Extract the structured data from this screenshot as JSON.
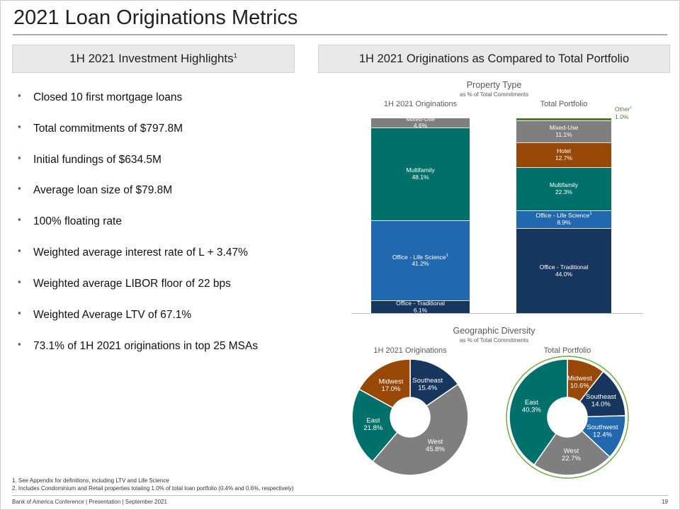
{
  "slide": {
    "title": "2021 Loan Originations Metrics",
    "page_number": "19",
    "footer": "Bank of America Conference | Presentation | September 2021",
    "footnotes": [
      "1. See Appendix for definitions, including LTV and Life Science",
      "2. Includes Condominium and Retail properties totaling 1.0% of total loan portfolio (0.4% and 0.6%, respectively)"
    ]
  },
  "left_panel": {
    "header": "1H 2021 Investment Highlights",
    "header_superscript": "1",
    "bullets": [
      "Closed 10 first mortgage loans",
      "Total commitments of $797.8M",
      "Initial fundings of $634.5M",
      "Average loan size of $79.8M",
      "100% floating rate",
      "Weighted average interest rate of L + 3.47%",
      "Weighted average LIBOR floor of 22 bps",
      "Weighted Average LTV of 67.1%",
      "73.1% of 1H 2021 originations in top 25 MSAs"
    ]
  },
  "right_panel": {
    "header": "1H 2021 Originations as Compared to Total Portfolio"
  },
  "colors": {
    "bullet": "#3e6f6b",
    "ring": "#6fac46",
    "other_label_text": "#538135",
    "palette": {
      "gray": "#7f7f7f",
      "teal": "#00716a",
      "blue": "#2268ae",
      "navy": "#17365d",
      "brown": "#974806",
      "green": "#4f7b28"
    }
  },
  "chart_data": [
    {
      "type": "bar",
      "stacked": true,
      "title": "Property Type",
      "subtitle": "as % of Total Commitments",
      "unit": "% of total commitments",
      "ylim": [
        0,
        100
      ],
      "columns": [
        {
          "label": "1H 2021 Originations",
          "segments": [
            {
              "name": "Mixed-Use",
              "value": 4.6,
              "color": "gray"
            },
            {
              "name": "Multifamily",
              "value": 48.1,
              "color": "teal"
            },
            {
              "name": "Office - Life Science",
              "sup": "1",
              "value": 41.2,
              "color": "blue"
            },
            {
              "name": "Office - Traditional",
              "value": 6.1,
              "color": "navy"
            }
          ]
        },
        {
          "label": "Total Portfolio",
          "segments": [
            {
              "name": "Other",
              "sup": "2",
              "value": 1.0,
              "color": "green",
              "label_outside": true
            },
            {
              "name": "Mixed-Use",
              "value": 11.1,
              "color": "gray"
            },
            {
              "name": "Hotel",
              "value": 12.7,
              "color": "brown"
            },
            {
              "name": "Multifamily",
              "value": 22.3,
              "color": "teal"
            },
            {
              "name": "Office - Life Science",
              "sup": "1",
              "value": 8.9,
              "color": "blue"
            },
            {
              "name": "Office - Traditional",
              "value": 44.0,
              "color": "navy"
            }
          ]
        }
      ],
      "outside_label": {
        "text": "Other",
        "sup": "2",
        "value": "1.0%"
      }
    },
    {
      "type": "pie",
      "title": "Geographic Diversity",
      "subtitle": "as % of Total Commitments",
      "donuts": [
        {
          "label": "1H 2021 Originations",
          "slices": [
            {
              "name": "Southeast",
              "value": 15.4,
              "color": "navy"
            },
            {
              "name": "West",
              "value": 45.8,
              "color": "gray"
            },
            {
              "name": "East",
              "value": 21.8,
              "color": "teal"
            },
            {
              "name": "Midwest",
              "value": 17.0,
              "color": "brown"
            }
          ]
        },
        {
          "label": "Total Portfolio",
          "ring": true,
          "slices": [
            {
              "name": "Midwest",
              "value": 10.6,
              "color": "brown"
            },
            {
              "name": "Southeast",
              "value": 14.0,
              "color": "navy"
            },
            {
              "name": "Southwest",
              "value": 12.4,
              "color": "blue"
            },
            {
              "name": "West",
              "value": 22.7,
              "color": "gray"
            },
            {
              "name": "East",
              "value": 40.3,
              "color": "teal"
            }
          ]
        }
      ]
    }
  ]
}
